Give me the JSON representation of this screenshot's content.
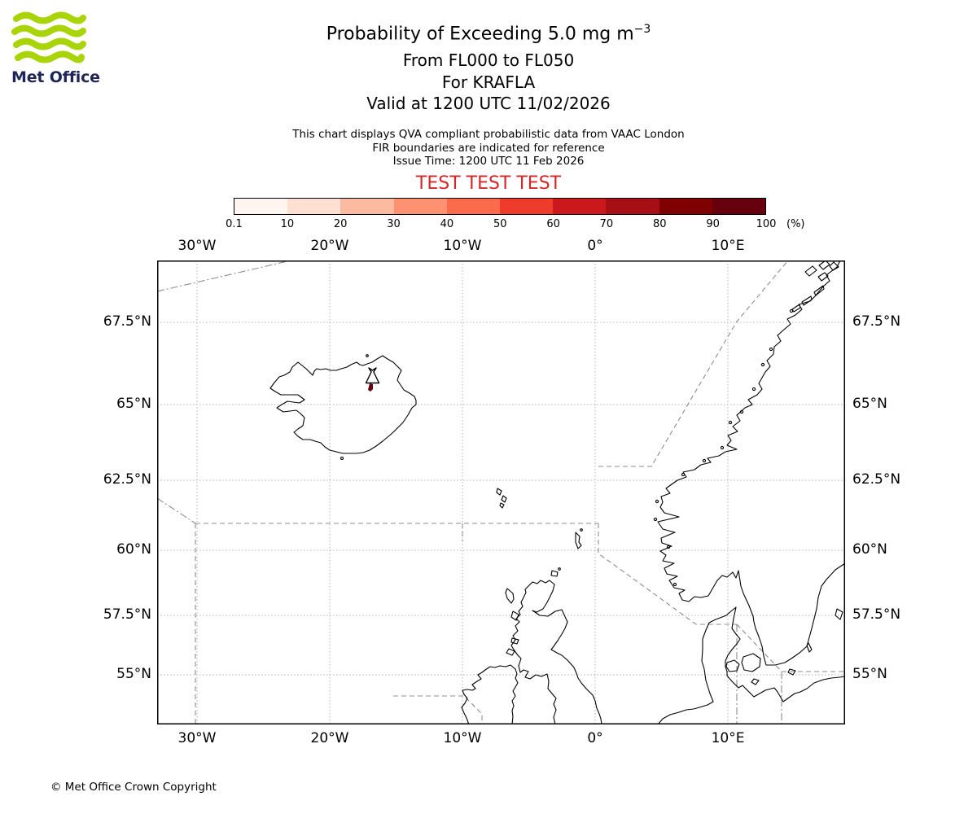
{
  "header": {
    "logo_text": "Met Office",
    "title": "Probability of Exceeding 5.0 mg m",
    "title_superscript": "−3",
    "subtitle1": "From FL000 to FL050",
    "subtitle2": "For KRAFLA",
    "subtitle3": "Valid at 1200 UTC 11/02/2026"
  },
  "info": {
    "line1": "This chart displays QVA compliant probabilistic data from VAAC London",
    "line2": "FIR boundaries are indicated for reference",
    "line3": "Issue Time: 1200 UTC 11 Feb 2026"
  },
  "test_banner": "TEST TEST TEST",
  "colorbar": {
    "tick_labels": [
      "0.1",
      "10",
      "20",
      "30",
      "40",
      "50",
      "60",
      "70",
      "80",
      "90",
      "100"
    ],
    "unit": "(%)",
    "colors": [
      "#fff5f0",
      "#fee0d2",
      "#fcbba1",
      "#fc9272",
      "#fb6a4a",
      "#ef3b2c",
      "#cb181d",
      "#a50f15",
      "#7f0000",
      "#67000d"
    ]
  },
  "map": {
    "lon_labels": [
      "30°W",
      "20°W",
      "10°W",
      "0°",
      "10°E"
    ],
    "lat_labels": [
      "67.5°N",
      "65°N",
      "62.5°N",
      "60°N",
      "57.5°N",
      "55°N"
    ]
  },
  "footer": "© Met Office Crown Copyright",
  "colors": {
    "test_text": "#d62728",
    "logo_green": "#a8d408",
    "logo_navy": "#1f2558",
    "ash_patch": "#67000d",
    "coastline": "#000000",
    "fir_boundary": "#8c8c8c",
    "grid": "#b0b0b0"
  }
}
